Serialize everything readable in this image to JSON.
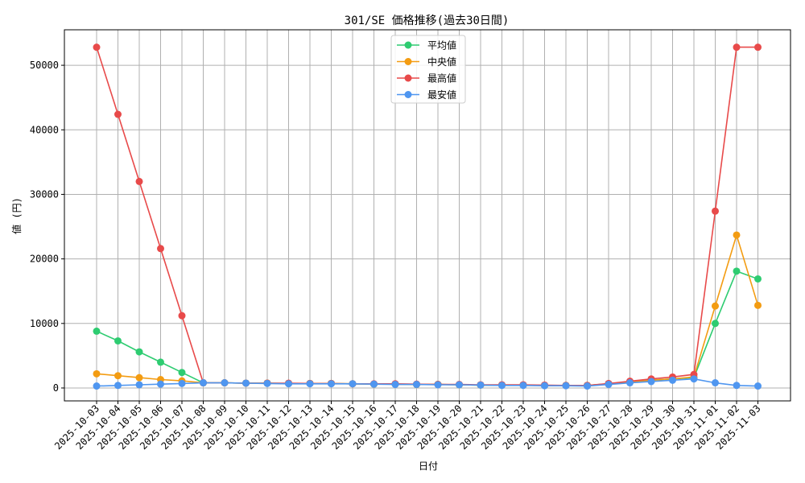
{
  "chart_data": {
    "type": "line",
    "title": "301/SE 価格推移(過去30日間)",
    "xlabel": "日付",
    "ylabel": "値 (円)",
    "ylim": [
      -2000,
      55500
    ],
    "yticks": [
      0,
      10000,
      20000,
      30000,
      40000,
      50000
    ],
    "grid": true,
    "legend_position": "top-center",
    "categories": [
      "2025-10-03",
      "2025-10-04",
      "2025-10-05",
      "2025-10-06",
      "2025-10-07",
      "2025-10-08",
      "2025-10-09",
      "2025-10-10",
      "2025-10-11",
      "2025-10-12",
      "2025-10-13",
      "2025-10-14",
      "2025-10-15",
      "2025-10-16",
      "2025-10-17",
      "2025-10-18",
      "2025-10-19",
      "2025-10-20",
      "2025-10-21",
      "2025-10-22",
      "2025-10-23",
      "2025-10-24",
      "2025-10-25",
      "2025-10-26",
      "2025-10-27",
      "2025-10-28",
      "2025-10-29",
      "2025-10-30",
      "2025-10-31",
      "2025-11-01",
      "2025-11-02",
      "2025-11-03"
    ],
    "series": [
      {
        "name": "平均値",
        "color": "#2ecc71",
        "values": [
          8800,
          7300,
          5600,
          4000,
          2400,
          800,
          800,
          750,
          750,
          700,
          700,
          700,
          650,
          600,
          600,
          550,
          550,
          500,
          450,
          450,
          450,
          400,
          400,
          400,
          650,
          900,
          1200,
          1400,
          1600,
          10000,
          18100,
          16900
        ]
      },
      {
        "name": "中央値",
        "color": "#f39c12",
        "values": [
          2200,
          1900,
          1600,
          1300,
          1100,
          800,
          800,
          750,
          750,
          700,
          700,
          700,
          650,
          600,
          600,
          550,
          550,
          500,
          450,
          450,
          450,
          400,
          400,
          400,
          650,
          900,
          1200,
          1400,
          1700,
          12700,
          23700,
          12800
        ]
      },
      {
        "name": "最高値",
        "color": "#e84a4a",
        "values": [
          52800,
          42400,
          32000,
          21600,
          11200,
          800,
          800,
          750,
          750,
          750,
          700,
          700,
          650,
          650,
          650,
          600,
          550,
          550,
          500,
          500,
          500,
          450,
          400,
          400,
          700,
          1050,
          1400,
          1700,
          2100,
          27400,
          52800,
          52800
        ]
      },
      {
        "name": "最安値",
        "color": "#4f96f0",
        "values": [
          300,
          400,
          500,
          600,
          700,
          800,
          800,
          750,
          700,
          650,
          650,
          650,
          650,
          600,
          550,
          550,
          500,
          500,
          450,
          400,
          400,
          350,
          350,
          300,
          550,
          800,
          1000,
          1200,
          1400,
          800,
          400,
          300
        ]
      }
    ]
  }
}
